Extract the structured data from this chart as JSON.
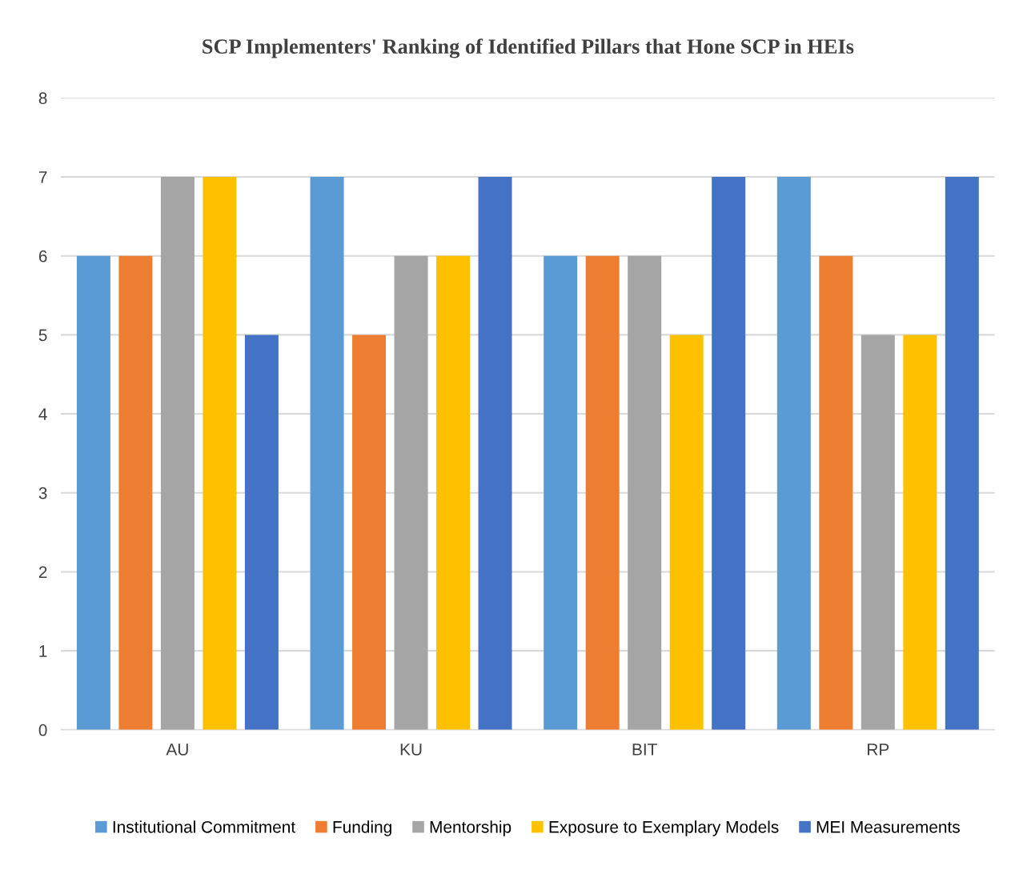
{
  "chart_data": {
    "type": "bar",
    "title": "SCP Implementers' Ranking of Identified Pillars that Hone SCP in HEIs",
    "categories": [
      "AU",
      "KU",
      "BIT",
      "RP"
    ],
    "series": [
      {
        "name": "Institutional Commitment",
        "color": "#5b9bd5",
        "values": [
          6,
          7,
          6,
          7
        ]
      },
      {
        "name": "Funding",
        "color": "#ed7d31",
        "values": [
          6,
          5,
          6,
          6
        ]
      },
      {
        "name": "Mentorship",
        "color": "#a5a5a5",
        "values": [
          7,
          6,
          6,
          5
        ]
      },
      {
        "name": "Exposure to Exemplary Models",
        "color": "#ffc000",
        "values": [
          7,
          6,
          5,
          5
        ]
      },
      {
        "name": "MEI Measurements",
        "color": "#4472c4",
        "values": [
          5,
          7,
          7,
          7
        ]
      }
    ],
    "ylim": [
      0,
      8
    ],
    "yticks": [
      0,
      1,
      2,
      3,
      4,
      5,
      6,
      7,
      8
    ],
    "grid": "y",
    "legend": "bottom"
  }
}
